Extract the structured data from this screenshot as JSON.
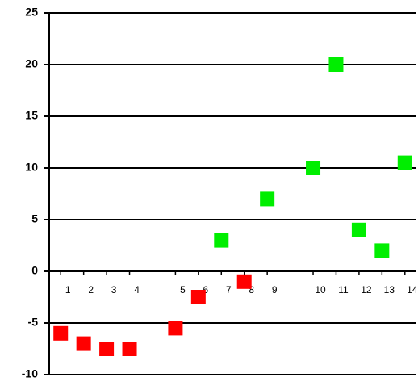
{
  "chart_data": {
    "type": "scatter",
    "x": [
      0.5,
      1.5,
      2.5,
      3.5,
      5.5,
      6.5,
      7.5,
      8.5,
      9.5,
      11.5,
      12.5,
      13.5,
      14.5,
      15.5
    ],
    "values": [
      -6,
      -7,
      -7.5,
      -7.5,
      -5.5,
      -2.5,
      3,
      -1,
      7,
      10,
      20,
      4,
      2,
      10.5
    ],
    "point_labels": [
      "1",
      "2",
      "3",
      "4",
      "5",
      "6",
      "7",
      "8",
      "9",
      "10",
      "11",
      "12",
      "13",
      "14"
    ],
    "point_colors": [
      "#ff0000",
      "#ff0000",
      "#ff0000",
      "#ff0000",
      "#ff0000",
      "#ff0000",
      "#00ee00",
      "#ff0000",
      "#00ee00",
      "#00ee00",
      "#00ee00",
      "#00ee00",
      "#00ee00",
      "#00ee00"
    ],
    "xlim": [
      0,
      16
    ],
    "ylim": [
      -10,
      25
    ],
    "yticks": [
      -10,
      -5,
      0,
      5,
      10,
      15,
      20,
      25
    ],
    "grid": true
  }
}
